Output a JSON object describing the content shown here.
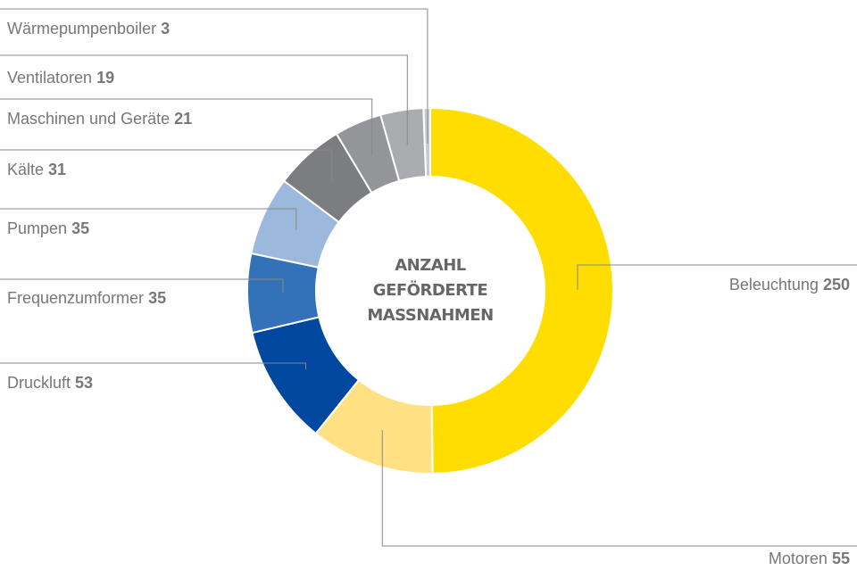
{
  "chart_data": {
    "type": "donut",
    "center_label": [
      "ANZAHL",
      "GEFÖRDERTE",
      "MASSNAHMEN"
    ],
    "categories": [
      "Beleuchtung",
      "Motoren",
      "Druckluft",
      "Frequenzumformer",
      "Pumpen",
      "Kälte",
      "Maschinen und Geräte",
      "Ventilatoren",
      "Wärmepumpenboiler"
    ],
    "values": [
      250,
      55,
      53,
      35,
      35,
      31,
      21,
      19,
      3
    ],
    "colors": [
      "#ffdd00",
      "#ffe082",
      "#0047a0",
      "#3371b8",
      "#9cb9dd",
      "#7b7d81",
      "#939598",
      "#a9abae",
      "#cacbcd"
    ]
  }
}
